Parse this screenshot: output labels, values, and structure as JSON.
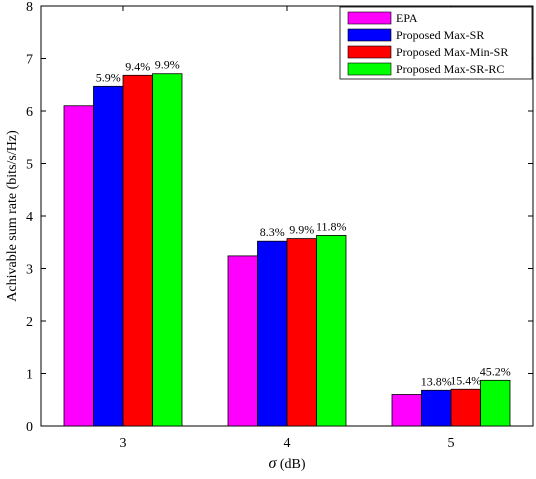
{
  "chart_data": {
    "type": "bar",
    "categories": [
      "3",
      "4",
      "5"
    ],
    "series": [
      {
        "name": "EPA",
        "color": "#ff00ff",
        "values": [
          6.1,
          3.24,
          0.6
        ],
        "labels": [
          "",
          "",
          ""
        ]
      },
      {
        "name": "Proposed Max-SR",
        "color": "#0000ff",
        "values": [
          6.47,
          3.52,
          0.68
        ],
        "labels": [
          "5.9%",
          "8.3%",
          "13.8%"
        ]
      },
      {
        "name": "Proposed Max-Min-SR",
        "color": "#ff0000",
        "values": [
          6.68,
          3.57,
          0.7
        ],
        "labels": [
          "9.4%",
          "9.9%",
          "15.4%"
        ]
      },
      {
        "name": "Proposed Max-SR-RC",
        "color": "#00ff00",
        "values": [
          6.71,
          3.63,
          0.87
        ],
        "labels": [
          "9.9%",
          "11.8%",
          "45.2%"
        ]
      }
    ],
    "title": "",
    "xlabel_symbol": "σ",
    "xlabel_unit": " (dB)",
    "ylabel": "Achivable sum rate (bits/s/Hz)",
    "ylim": [
      0,
      8
    ],
    "yticks": [
      "0",
      "1",
      "2",
      "3",
      "4",
      "5",
      "6",
      "7",
      "8"
    ],
    "grid": false,
    "legend_position": "top-right"
  }
}
